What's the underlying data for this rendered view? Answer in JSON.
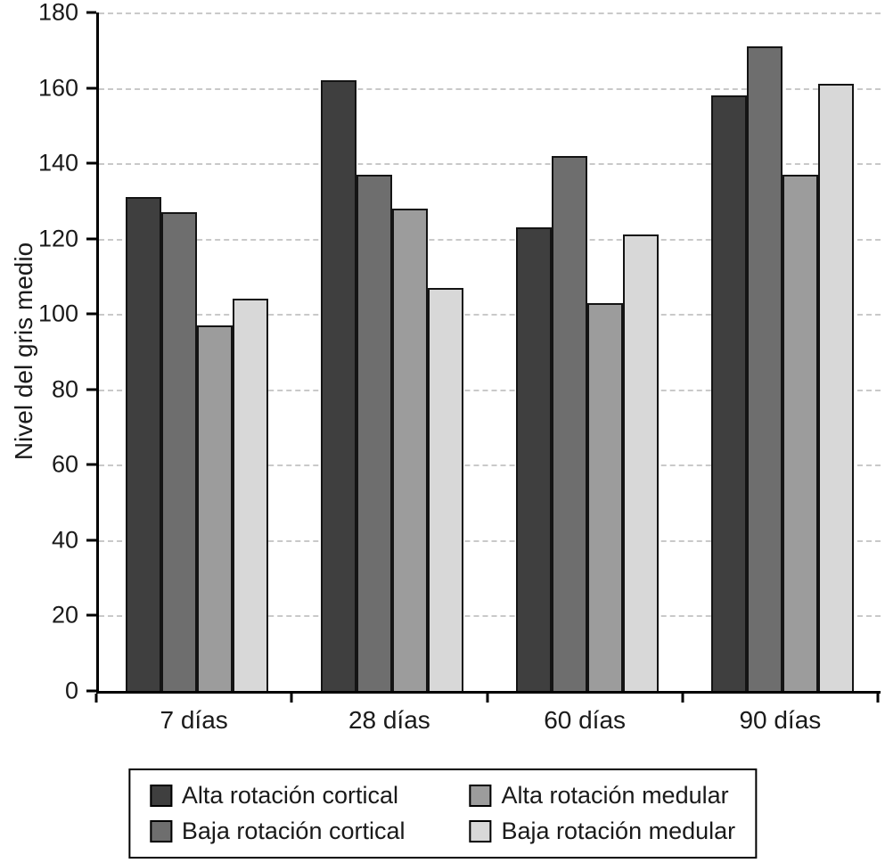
{
  "chart_data": {
    "type": "bar",
    "title": "",
    "xlabel": "",
    "ylabel": "Nivel del gris medio",
    "ylim": [
      0,
      180
    ],
    "ytick_step": 20,
    "grid": "horizontal-dashed",
    "legend_position": "bottom",
    "categories": [
      "7 días",
      "28 días",
      "60 días",
      "90 días"
    ],
    "series": [
      {
        "name": "Alta rotación cortical",
        "color": "#3f3f3f",
        "values": [
          131,
          162,
          123,
          158
        ]
      },
      {
        "name": "Baja rotación cortical",
        "color": "#6e6e6e",
        "values": [
          127,
          137,
          142,
          171
        ]
      },
      {
        "name": "Alta rotación medular",
        "color": "#9c9c9c",
        "values": [
          97,
          128,
          103,
          137
        ]
      },
      {
        "name": "Baja rotación medular",
        "color": "#d8d8d8",
        "values": [
          104,
          107,
          121,
          161
        ]
      }
    ],
    "legend_column_order": [
      0,
      2,
      1,
      3
    ]
  }
}
